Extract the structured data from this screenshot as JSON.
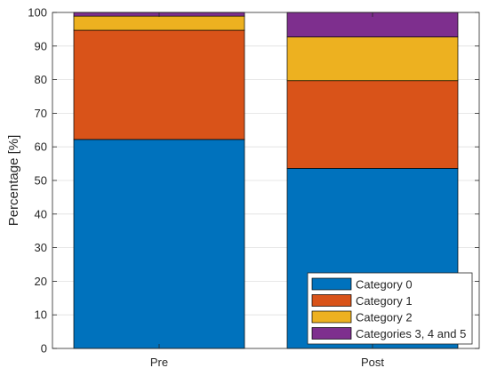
{
  "chart_data": {
    "type": "bar",
    "stacked": true,
    "categories": [
      "Pre",
      "Post"
    ],
    "series": [
      {
        "name": "Category 0",
        "values": [
          62.2,
          53.6
        ],
        "color": "#0072BD"
      },
      {
        "name": "Category 1",
        "values": [
          32.5,
          26.1
        ],
        "color": "#D95319"
      },
      {
        "name": "Category 2",
        "values": [
          4.2,
          13.0
        ],
        "color": "#EDB120"
      },
      {
        "name": "Categories 3, 4 and 5",
        "values": [
          1.1,
          7.3
        ],
        "color": "#7E2F8E"
      }
    ],
    "title": "",
    "xlabel": "",
    "ylabel": "Percentage [%]",
    "ylim": [
      0,
      100
    ],
    "yticks": [
      0,
      10,
      20,
      30,
      40,
      50,
      60,
      70,
      80,
      90,
      100
    ],
    "grid": true,
    "legend_position": "bottom-right"
  }
}
